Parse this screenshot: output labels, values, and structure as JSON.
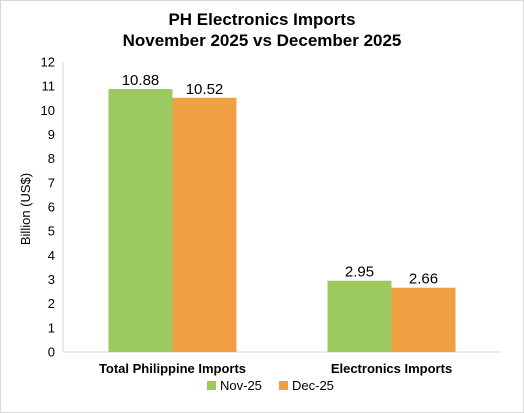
{
  "chart_data": {
    "type": "bar",
    "title": "PH Electronics Imports",
    "subtitle": "November 2025 vs December 2025",
    "xlabel": "",
    "ylabel": "Billion (US$)",
    "ylim": [
      0,
      12
    ],
    "ytick_step": 1,
    "grid": false,
    "legend_position": "bottom",
    "categories": [
      "Total Philippine Imports",
      "Electronics Imports"
    ],
    "series": [
      {
        "name": "Nov-25",
        "color": "#9bc95f",
        "values": [
          10.88,
          2.95
        ]
      },
      {
        "name": "Dec-25",
        "color": "#f0a042",
        "values": [
          10.52,
          2.66
        ]
      }
    ]
  }
}
